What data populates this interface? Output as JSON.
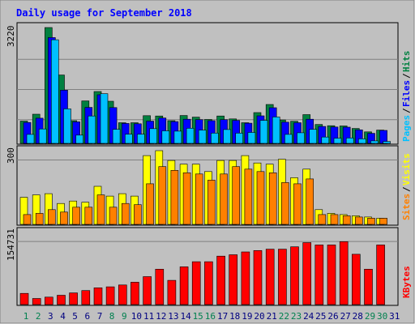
{
  "title": "Daily usage for September 2018",
  "chart_data": [
    {
      "type": "bar",
      "panel": "hits-files-pages",
      "x": [
        1,
        2,
        3,
        4,
        5,
        6,
        7,
        8,
        9,
        10,
        11,
        12,
        13,
        14,
        15,
        16,
        17,
        18,
        19,
        20,
        21,
        22,
        23,
        24,
        25,
        26,
        27,
        28,
        29,
        30,
        31
      ],
      "ymax_label": "3220",
      "ylim": [
        0,
        3220
      ],
      "grid": true,
      "legend": [
        "Pages",
        "Files",
        "Hits"
      ],
      "series": [
        {
          "name": "Hits",
          "color": "#008040",
          "values": [
            620,
            810,
            3220,
            1900,
            630,
            1180,
            1440,
            1170,
            575,
            575,
            770,
            760,
            630,
            775,
            730,
            665,
            760,
            680,
            575,
            855,
            1080,
            650,
            615,
            800,
            525,
            490,
            485,
            415,
            320,
            370,
            0
          ]
        },
        {
          "name": "Files",
          "color": "#0000ff",
          "values": [
            580,
            700,
            2940,
            1480,
            600,
            1000,
            1350,
            995,
            555,
            545,
            620,
            705,
            605,
            670,
            660,
            630,
            660,
            640,
            560,
            765,
            990,
            590,
            575,
            670,
            470,
            455,
            450,
            375,
            280,
            360,
            0
          ]
        },
        {
          "name": "Pages",
          "color": "#00c0ff",
          "values": [
            250,
            400,
            2880,
            960,
            230,
            760,
            1380,
            390,
            255,
            255,
            410,
            350,
            340,
            420,
            370,
            285,
            385,
            285,
            305,
            640,
            735,
            250,
            295,
            390,
            175,
            145,
            150,
            125,
            70,
            55,
            0
          ]
        }
      ]
    },
    {
      "type": "bar",
      "panel": "visits-sites",
      "x": [
        1,
        2,
        3,
        4,
        5,
        6,
        7,
        8,
        9,
        10,
        11,
        12,
        13,
        14,
        15,
        16,
        17,
        18,
        19,
        20,
        21,
        22,
        23,
        24,
        25,
        26,
        27,
        28,
        29,
        30,
        31
      ],
      "ymax_label": "300",
      "ylim": [
        0,
        300
      ],
      "grid": true,
      "legend": [
        "Sites",
        "Visits"
      ],
      "series": [
        {
          "name": "Visits",
          "color": "#ffff00",
          "values": [
            110,
            120,
            125,
            85,
            95,
            90,
            155,
            115,
            125,
            115,
            280,
            300,
            260,
            245,
            245,
            215,
            260,
            260,
            280,
            250,
            245,
            265,
            190,
            225,
            60,
            45,
            40,
            35,
            30,
            25,
            0
          ]
        },
        {
          "name": "Sites",
          "color": "#ff8000",
          "values": [
            40,
            45,
            60,
            50,
            70,
            70,
            120,
            70,
            85,
            80,
            165,
            235,
            220,
            210,
            205,
            180,
            205,
            235,
            225,
            215,
            210,
            170,
            165,
            185,
            40,
            40,
            35,
            30,
            25,
            25,
            0
          ]
        }
      ]
    },
    {
      "type": "bar",
      "panel": "kbytes",
      "x": [
        1,
        2,
        3,
        4,
        5,
        6,
        7,
        8,
        9,
        10,
        11,
        12,
        13,
        14,
        15,
        16,
        17,
        18,
        19,
        20,
        21,
        22,
        23,
        24,
        25,
        26,
        27,
        28,
        29,
        30,
        31
      ],
      "ymax_label": "154731",
      "ylim": [
        0,
        154731
      ],
      "grid": true,
      "legend": [
        "KBytes"
      ],
      "series": [
        {
          "name": "KBytes",
          "color": "#ff0000",
          "values": [
            24000,
            13000,
            16000,
            20000,
            25000,
            30000,
            36000,
            38000,
            42000,
            48000,
            60000,
            76000,
            52000,
            81000,
            92000,
            92000,
            104000,
            107000,
            113000,
            116000,
            119000,
            119000,
            124000,
            133000,
            128000,
            128000,
            135000,
            108000,
            76000,
            128000,
            0
          ]
        }
      ]
    }
  ],
  "xlabel_colors": {
    "weekday": "#000080",
    "weekend": "#00804f"
  },
  "weekend_days": [
    1,
    2,
    8,
    9,
    15,
    16,
    22,
    23,
    29,
    30
  ]
}
